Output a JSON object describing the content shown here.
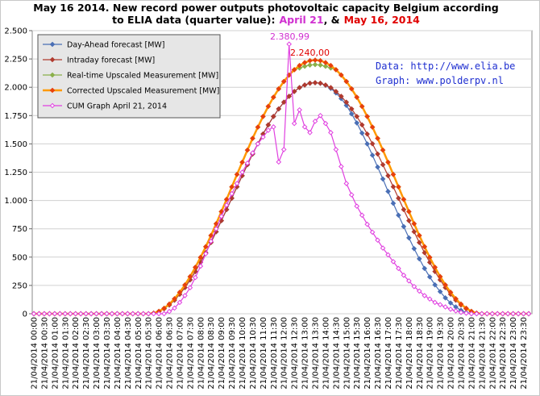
{
  "chart_data": {
    "type": "line",
    "title": {
      "line1": "May 16 2014. New record power outputs photovoltaic capacity Belgium according",
      "line2": "to ELIA data (quarter value):",
      "april": "April 21",
      "amp": ", &",
      "may": "May 16, 2014"
    },
    "annotations": {
      "source": "Data: http://www.elia.be",
      "graph": "Graph:  www.polderpv.nl",
      "peak_april": "2.380,99",
      "peak_may": "2.240,00"
    },
    "legend": "upper left",
    "grid": true,
    "ylim": [
      0,
      2500
    ],
    "yticks": [
      0,
      250,
      500,
      750,
      {
        "value": 1000,
        "label": "1.000"
      },
      {
        "value": 1250,
        "label": "1.250"
      },
      {
        "value": 1500,
        "label": "1.500"
      },
      {
        "value": 1750,
        "label": "1.750"
      },
      {
        "value": 2000,
        "label": "2.000"
      },
      {
        "value": 2250,
        "label": "2.250"
      },
      {
        "value": 2500,
        "label": "2.500"
      }
    ],
    "categories": [
      "21/04/2014 00:00",
      null,
      "21/04/2014 00:30",
      null,
      "21/04/2014 01:00",
      null,
      "21/04/2014 01:30",
      null,
      "21/04/2014 02:00",
      null,
      "21/04/2014 02:30",
      null,
      "21/04/2014 03:00",
      null,
      "21/04/2014 03:30",
      null,
      "21/04/2014 04:00",
      null,
      "21/04/2014 04:30",
      null,
      "21/04/2014 05:00",
      null,
      "21/04/2014 05:30",
      null,
      "21/04/2014 06:00",
      null,
      "21/04/2014 06:30",
      null,
      "21/04/2014 07:00",
      null,
      "21/04/2014 07:30",
      null,
      "21/04/2014 08:00",
      null,
      "21/04/2014 08:30",
      null,
      "21/04/2014 09:00",
      null,
      "21/04/2014 09:30",
      null,
      "21/04/2014 10:00",
      null,
      "21/04/2014 10:30",
      null,
      "21/04/2014 11:00",
      null,
      "21/04/2014 11:30",
      null,
      "21/04/2014 12:00",
      null,
      "21/04/2014 12:30",
      null,
      "21/04/2014 13:00",
      null,
      "21/04/2014 13:30",
      null,
      "21/04/2014 14:00",
      null,
      "21/04/2014 14:30",
      null,
      "21/04/2014 15:00",
      null,
      "21/04/2014 15:30",
      null,
      "21/04/2014 16:00",
      null,
      "21/04/2014 16:30",
      null,
      "21/04/2014 17:00",
      null,
      "21/04/2014 17:30",
      null,
      "21/04/2014 18:00",
      null,
      "21/04/2014 18:30",
      null,
      "21/04/2014 19:00",
      null,
      "21/04/2014 19:30",
      null,
      "21/04/2014 20:00",
      null,
      "21/04/2014 20:30",
      null,
      "21/04/2014 21:00",
      null,
      "21/04/2014 21:30",
      null,
      "21/04/2014 22:00",
      null,
      "21/04/2014 22:30",
      null,
      "21/04/2014 23:00",
      null,
      "21/04/2014 23:30",
      null
    ],
    "series": [
      {
        "name": "Day-Ahead forecast [MW]",
        "color": "#4a6fb5",
        "values": [
          0,
          0,
          0,
          0,
          0,
          0,
          0,
          0,
          0,
          0,
          0,
          0,
          0,
          0,
          0,
          0,
          0,
          0,
          0,
          0,
          0,
          0,
          0,
          5,
          19,
          44,
          77,
          120,
          172,
          231,
          299,
          373,
          454,
          539,
          629,
          724,
          822,
          920,
          1020,
          1121,
          1219,
          1316,
          1411,
          1501,
          1587,
          1668,
          1742,
          1809,
          1868,
          1920,
          1963,
          1997,
          2020,
          2036,
          2040,
          2035,
          2018,
          1990,
          1950,
          1900,
          1840,
          1765,
          1685,
          1595,
          1500,
          1400,
          1295,
          1190,
          1080,
          975,
          870,
          770,
          670,
          575,
          485,
          400,
          325,
          255,
          195,
          140,
          95,
          60,
          30,
          10,
          0,
          0,
          0,
          0,
          0,
          0,
          0,
          0,
          0,
          0,
          0,
          0
        ]
      },
      {
        "name": "Intraday forecast [MW]",
        "color": "#b03a2e",
        "values": [
          0,
          0,
          0,
          0,
          0,
          0,
          0,
          0,
          0,
          0,
          0,
          0,
          0,
          0,
          0,
          0,
          0,
          0,
          0,
          0,
          0,
          0,
          0,
          5,
          19,
          44,
          77,
          120,
          172,
          231,
          299,
          373,
          454,
          539,
          629,
          724,
          822,
          920,
          1020,
          1121,
          1219,
          1316,
          1411,
          1501,
          1587,
          1668,
          1742,
          1809,
          1868,
          1920,
          1963,
          1997,
          2020,
          2036,
          2040,
          2036,
          2020,
          1997,
          1963,
          1920,
          1868,
          1809,
          1742,
          1668,
          1587,
          1501,
          1411,
          1316,
          1219,
          1121,
          1020,
          920,
          822,
          724,
          629,
          539,
          454,
          373,
          299,
          231,
          172,
          120,
          77,
          44,
          19,
          5,
          0,
          0,
          0,
          0,
          0,
          0,
          0,
          0,
          0,
          0
        ]
      },
      {
        "name": "Real-time Upscaled Measurement [MW]",
        "color": "#8ab04a",
        "values": [
          0,
          0,
          0,
          0,
          0,
          0,
          0,
          0,
          0,
          0,
          0,
          0,
          0,
          0,
          0,
          0,
          0,
          0,
          0,
          0,
          0,
          0,
          0,
          5,
          21,
          48,
          85,
          132,
          189,
          254,
          328,
          410,
          498,
          592,
          691,
          795,
          902,
          1010,
          1120,
          1230,
          1338,
          1445,
          1549,
          1648,
          1742,
          1831,
          1912,
          1986,
          2051,
          2108,
          2155,
          2170,
          2185,
          2196,
          2200,
          2196,
          2185,
          2170,
          2155,
          2108,
          2051,
          1986,
          1912,
          1831,
          1742,
          1648,
          1549,
          1445,
          1338,
          1230,
          1120,
          1010,
          902,
          795,
          691,
          592,
          498,
          410,
          328,
          254,
          189,
          132,
          85,
          48,
          21,
          5,
          0,
          0,
          0,
          0,
          0,
          0,
          0,
          0,
          0,
          0
        ]
      },
      {
        "name": "Corrected Upscaled Measurement [MW]",
        "color": "#ff9900",
        "marker_color": "#e8400c",
        "values": [
          0,
          0,
          0,
          0,
          0,
          0,
          0,
          0,
          0,
          0,
          0,
          0,
          0,
          0,
          0,
          0,
          0,
          0,
          0,
          0,
          0,
          0,
          0,
          5,
          21,
          48,
          85,
          132,
          189,
          254,
          328,
          410,
          498,
          592,
          691,
          795,
          902,
          1010,
          1120,
          1230,
          1338,
          1445,
          1549,
          1648,
          1742,
          1831,
          1912,
          1986,
          2051,
          2108,
          2155,
          2192,
          2218,
          2235,
          2240,
          2235,
          2218,
          2192,
          2155,
          2108,
          2051,
          1986,
          1912,
          1831,
          1742,
          1648,
          1549,
          1445,
          1338,
          1230,
          1120,
          1010,
          902,
          795,
          691,
          592,
          498,
          410,
          328,
          254,
          189,
          132,
          85,
          48,
          21,
          5,
          0,
          0,
          0,
          0,
          0,
          0,
          0,
          0,
          0,
          0
        ]
      },
      {
        "name": "CUM Graph April 21, 2014",
        "color": "#e040e0",
        "marker_fill": "#ffffff",
        "values": [
          0,
          0,
          0,
          0,
          0,
          0,
          0,
          0,
          0,
          0,
          0,
          0,
          0,
          0,
          0,
          0,
          0,
          0,
          0,
          0,
          0,
          0,
          0,
          0,
          0,
          0,
          20,
          50,
          100,
          160,
          230,
          320,
          420,
          530,
          640,
          750,
          860,
          960,
          1060,
          1150,
          1250,
          1330,
          1420,
          1500,
          1560,
          1620,
          1650,
          1340,
          1450,
          2380.99,
          1680,
          1800,
          1650,
          1600,
          1700,
          1750,
          1680,
          1600,
          1450,
          1300,
          1150,
          1050,
          950,
          870,
          790,
          720,
          650,
          580,
          520,
          460,
          400,
          340,
          290,
          240,
          200,
          160,
          130,
          100,
          80,
          60,
          40,
          25,
          12,
          5,
          0,
          0,
          0,
          0,
          0,
          0,
          0,
          0,
          0,
          0,
          0,
          0
        ]
      }
    ]
  }
}
